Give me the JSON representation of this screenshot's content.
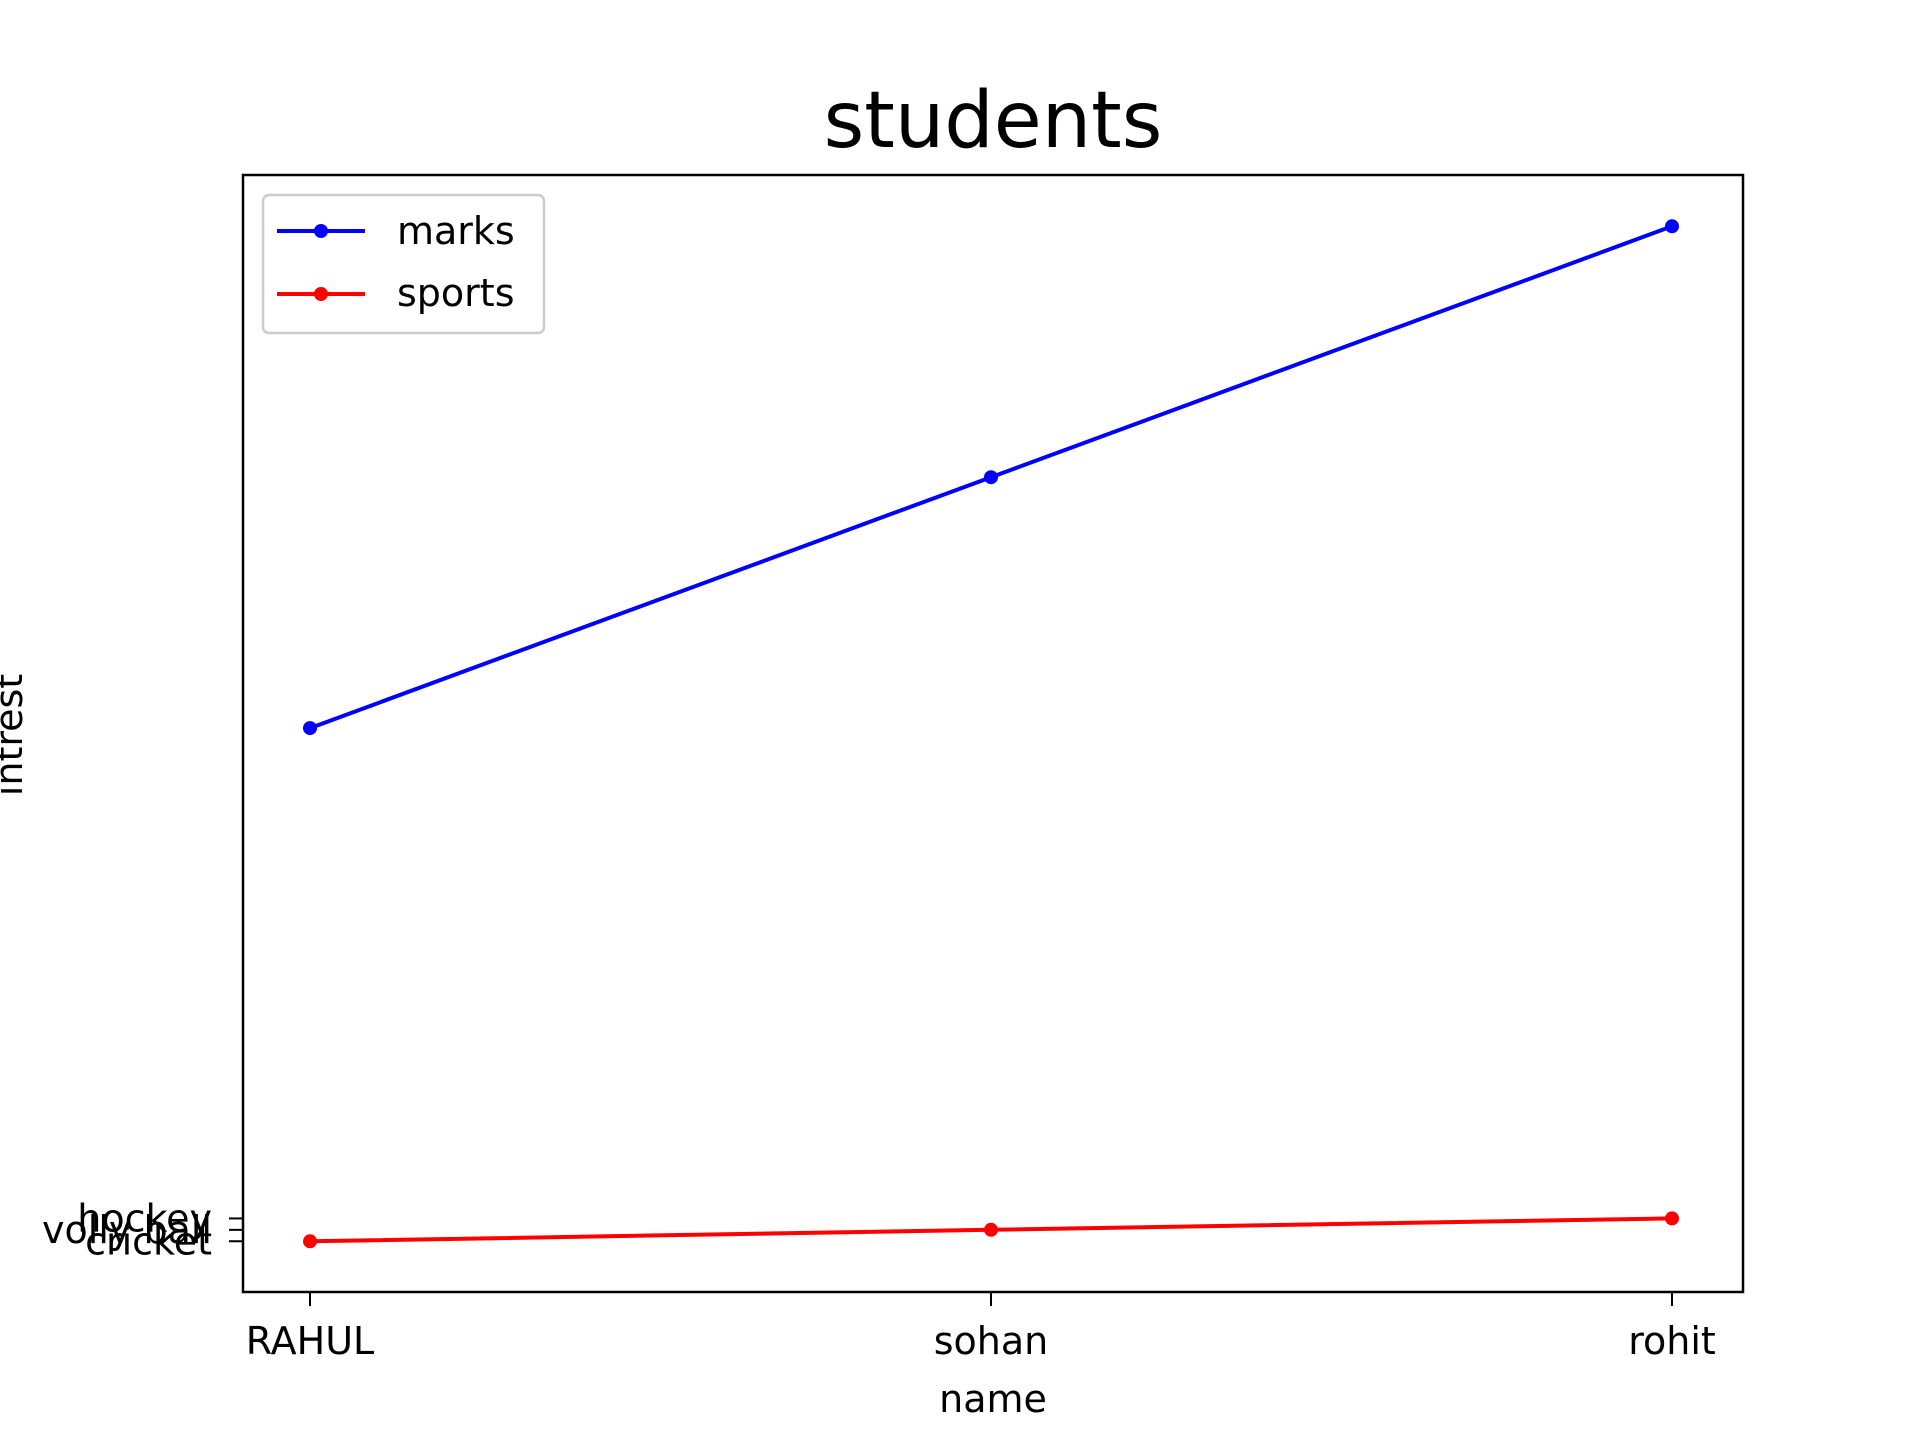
{
  "chart_data": {
    "type": "line",
    "title": "students",
    "xlabel": "name",
    "ylabel": "intrest",
    "categories": [
      "RAHUL",
      "sohan",
      "rohit"
    ],
    "y_categorical_ticks": [
      "cricket",
      "volly ball",
      "hockey"
    ],
    "series": [
      {
        "name": "marks",
        "values": [
          45,
          67,
          89
        ],
        "color": "#0000ff",
        "marker": "circle"
      },
      {
        "name": "sports",
        "values": [
          "cricket",
          "volly ball",
          "hockey"
        ],
        "color": "#ff0000",
        "marker": "circle"
      }
    ],
    "legend_position": "top-left",
    "grid": false
  }
}
